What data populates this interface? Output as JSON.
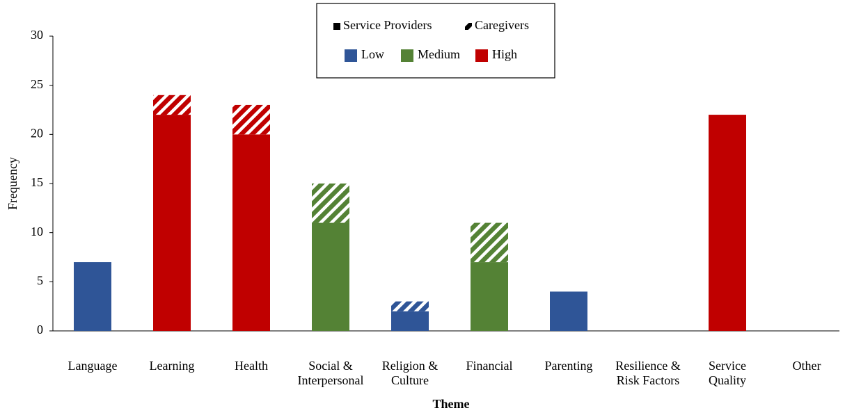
{
  "chart_data": {
    "type": "bar",
    "stacked": true,
    "y_label": "Frequency",
    "x_label": "Theme",
    "categories": [
      "Language",
      "Learning",
      "Health",
      "Social & Interpersonal",
      "Religion & Culture",
      "Financial",
      "Parenting",
      "Resilience & Risk Factors",
      "Service Quality",
      "Other"
    ],
    "category_levels": [
      "Low",
      "High",
      "High",
      "Medium",
      "Low",
      "Medium",
      "Low",
      null,
      "High",
      null
    ],
    "levels": [
      {
        "name": "Low",
        "color": "#2f5597"
      },
      {
        "name": "Medium",
        "color": "#548235"
      },
      {
        "name": "High",
        "color": "#c00000"
      }
    ],
    "series": [
      {
        "name": "Service Providers",
        "pattern": "solid",
        "color": "#000000",
        "values": [
          7,
          22,
          20,
          11,
          2,
          7,
          4,
          0,
          22,
          0
        ]
      },
      {
        "name": "Caregivers",
        "pattern": "hatched",
        "color": "#000000",
        "values": [
          0,
          2,
          3,
          4,
          1,
          4,
          0,
          0,
          0,
          0
        ]
      }
    ],
    "ylim": [
      0,
      30
    ],
    "yticks": [
      0,
      5,
      10,
      15,
      20,
      25,
      30
    ]
  }
}
